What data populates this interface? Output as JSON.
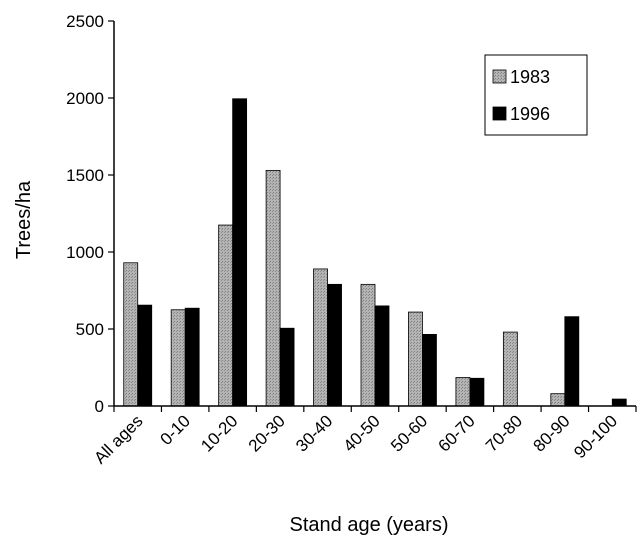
{
  "chart_data": {
    "type": "bar",
    "title": "",
    "xlabel": "Stand age (years)",
    "ylabel": "Trees/ha",
    "ylim": [
      0,
      2500
    ],
    "yticks": [
      0,
      500,
      1000,
      1500,
      2000,
      2500
    ],
    "grid": false,
    "legend_position": "top-right",
    "categories": [
      "All ages",
      "0-10",
      "10-20",
      "20-30",
      "30-40",
      "40-50",
      "50-60",
      "60-70",
      "70-80",
      "80-90",
      "90-100"
    ],
    "series": [
      {
        "name": "1983",
        "color": "#a8a8a8",
        "values": [
          930,
          625,
          1175,
          1530,
          890,
          790,
          610,
          185,
          480,
          80,
          0
        ]
      },
      {
        "name": "1996",
        "color": "#000000",
        "values": [
          655,
          635,
          1995,
          505,
          790,
          650,
          465,
          180,
          0,
          580,
          45
        ]
      }
    ]
  }
}
